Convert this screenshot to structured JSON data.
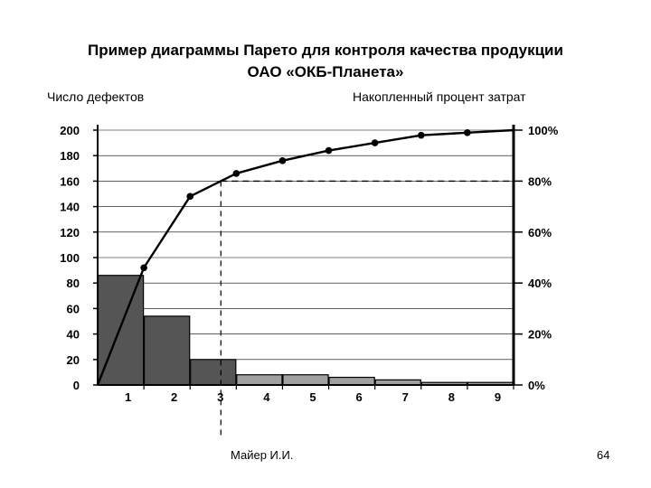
{
  "chart_data": {
    "type": "bar",
    "title_line1": "Пример диаграммы Парето для контроля качества продукции",
    "title_line2": "ОАО «ОКБ-Планета»",
    "ylabel_left": "Число дефектов",
    "ylabel_right": "Накопленный процент затрат",
    "categories": [
      "1",
      "2",
      "3",
      "4",
      "5",
      "6",
      "7",
      "8",
      "9"
    ],
    "bar_values": [
      86,
      54,
      20,
      8,
      8,
      6,
      4,
      2,
      2
    ],
    "bar_colors": [
      "#555555",
      "#555555",
      "#555555",
      "#a0a0a0",
      "#a0a0a0",
      "#a0a0a0",
      "#a0a0a0",
      "#a0a0a0",
      "#a0a0a0"
    ],
    "cumulative_percent": [
      46,
      74,
      83,
      88,
      92,
      95,
      98,
      99,
      100
    ],
    "y_left_ticks": [
      "0",
      "20",
      "40",
      "60",
      "80",
      "100",
      "120",
      "140",
      "160",
      "180",
      "200"
    ],
    "y_left_range": [
      0,
      200
    ],
    "y_right_ticks": [
      "0%",
      "20%",
      "40%",
      "60%",
      "80%",
      "100%"
    ],
    "y_right_range": [
      0,
      100
    ],
    "reference_percent": 80,
    "grid": "horizontal"
  },
  "footer": {
    "author": "Майер И.И.",
    "page_number": "64"
  }
}
